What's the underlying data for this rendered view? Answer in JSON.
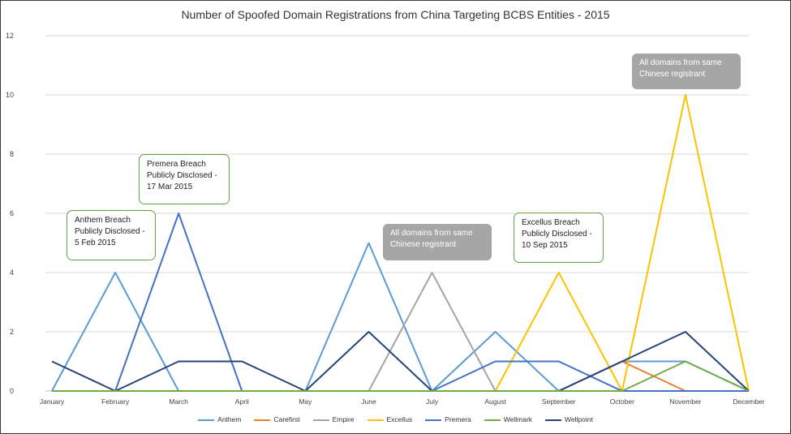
{
  "chart_data": {
    "type": "line",
    "title": "Number of Spoofed Domain Registrations from China Targeting BCBS Entities - 2015",
    "categories": [
      "January",
      "February",
      "March",
      "April",
      "May",
      "June",
      "July",
      "August",
      "September",
      "October",
      "November",
      "December"
    ],
    "ylim": [
      0,
      12
    ],
    "yticks": [
      0,
      2,
      4,
      6,
      8,
      10,
      12
    ],
    "grid": true,
    "legend_position": "bottom",
    "series": [
      {
        "name": "Anthem",
        "color": "#5b9bd5",
        "values": [
          0,
          4,
          0,
          0,
          0,
          5,
          0,
          2,
          0,
          1,
          1,
          0
        ]
      },
      {
        "name": "Carefirst",
        "color": "#ed7d31",
        "values": [
          0,
          0,
          0,
          0,
          0,
          0,
          0,
          0,
          0,
          1,
          0,
          0
        ]
      },
      {
        "name": "Empire",
        "color": "#a5a5a5",
        "values": [
          0,
          0,
          0,
          0,
          0,
          0,
          4,
          0,
          0,
          0,
          0,
          0
        ]
      },
      {
        "name": "Excellus",
        "color": "#ffc000",
        "values": [
          0,
          0,
          0,
          0,
          0,
          0,
          0,
          0,
          4,
          0,
          10,
          0
        ]
      },
      {
        "name": "Premera",
        "color": "#4472c4",
        "values": [
          0,
          0,
          6,
          0,
          0,
          0,
          0,
          1,
          1,
          0,
          0,
          0
        ]
      },
      {
        "name": "Wellmark",
        "color": "#70ad47",
        "values": [
          0,
          0,
          0,
          0,
          0,
          0,
          0,
          0,
          0,
          0,
          1,
          0
        ]
      },
      {
        "name": "Wellpoint",
        "color": "#264478",
        "values": [
          1,
          0,
          1,
          1,
          0,
          2,
          0,
          0,
          0,
          1,
          2,
          0
        ]
      }
    ],
    "annotations": [
      {
        "id": "anthem",
        "style": "green",
        "lines": [
          "Anthem Breach",
          "Publicly Disclosed -",
          "5 Feb 2015"
        ]
      },
      {
        "id": "premera",
        "style": "green",
        "lines": [
          "Premera Breach",
          "Publicly Disclosed -",
          "17 Mar 2015"
        ]
      },
      {
        "id": "july-note",
        "style": "gray",
        "lines": [
          "All domains from same",
          "Chinese registrant"
        ]
      },
      {
        "id": "excellus",
        "style": "green",
        "lines": [
          "Excellus Breach",
          "Publicly Disclosed -",
          "10 Sep 2015"
        ]
      },
      {
        "id": "nov-note",
        "style": "gray",
        "lines": [
          "All domains from same",
          "Chinese registrant"
        ]
      }
    ]
  }
}
